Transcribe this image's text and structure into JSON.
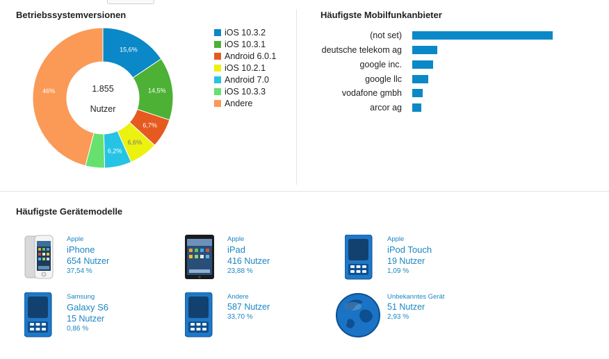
{
  "os_section": {
    "title": "Betriebssystemversionen",
    "total": "1.855",
    "unit": "Nutzer",
    "slices": [
      {
        "label": "iOS 10.3.2",
        "value": 15.6,
        "pct_label": "15,6%",
        "color": "#0b88c7"
      },
      {
        "label": "iOS 10.3.1",
        "value": 14.5,
        "pct_label": "14,5%",
        "color": "#4cb134"
      },
      {
        "label": "Android 6.0.1",
        "value": 6.7,
        "pct_label": "6,7%",
        "color": "#e65a20"
      },
      {
        "label": "iOS 10.2.1",
        "value": 6.6,
        "pct_label": "6,6%",
        "color": "#ecf10f"
      },
      {
        "label": "Android 7.0",
        "value": 6.2,
        "pct_label": "6,2%",
        "color": "#25c4e4"
      },
      {
        "label": "iOS 10.3.3",
        "value": 4.4,
        "pct_label": "",
        "color": "#66e16e"
      },
      {
        "label": "Andere",
        "value": 46.0,
        "pct_label": "46%",
        "color": "#fb9957"
      }
    ]
  },
  "carrier_section": {
    "title": "Häufigste Mobilfunkanbieter",
    "bar_color": "#0b88c7",
    "rows": [
      {
        "label": "(not set)",
        "value": 100
      },
      {
        "label": "deutsche telekom ag",
        "value": 18
      },
      {
        "label": "google inc.",
        "value": 15
      },
      {
        "label": "google llc",
        "value": 11.5
      },
      {
        "label": "vodafone gmbh",
        "value": 7.5
      },
      {
        "label": "arcor ag",
        "value": 6.5
      }
    ]
  },
  "devices_section": {
    "title": "Häufigste Gerätemodelle",
    "devices": [
      {
        "brand": "Apple",
        "model": "iPhone",
        "users": "654 Nutzer",
        "pct": "37,54 %",
        "icon": "iphone-icon"
      },
      {
        "brand": "Apple",
        "model": "iPad",
        "users": "416 Nutzer",
        "pct": "23,88 %",
        "icon": "ipad-icon"
      },
      {
        "brand": "Apple",
        "model": "iPod Touch",
        "users": "19 Nutzer",
        "pct": "1,09 %",
        "icon": "generic-phone-icon"
      },
      {
        "brand": "Samsung",
        "model": "Galaxy S6",
        "users": "15 Nutzer",
        "pct": "0,86 %",
        "icon": "generic-phone-icon"
      },
      {
        "brand": "Andere",
        "model": "",
        "users": "587 Nutzer",
        "pct": "33,70 %",
        "icon": "generic-phone-icon"
      },
      {
        "brand": "Unbekanntes Gerät",
        "model": "",
        "users": "51 Nutzer",
        "pct": "2,93 %",
        "icon": "globe-icon"
      }
    ]
  }
}
